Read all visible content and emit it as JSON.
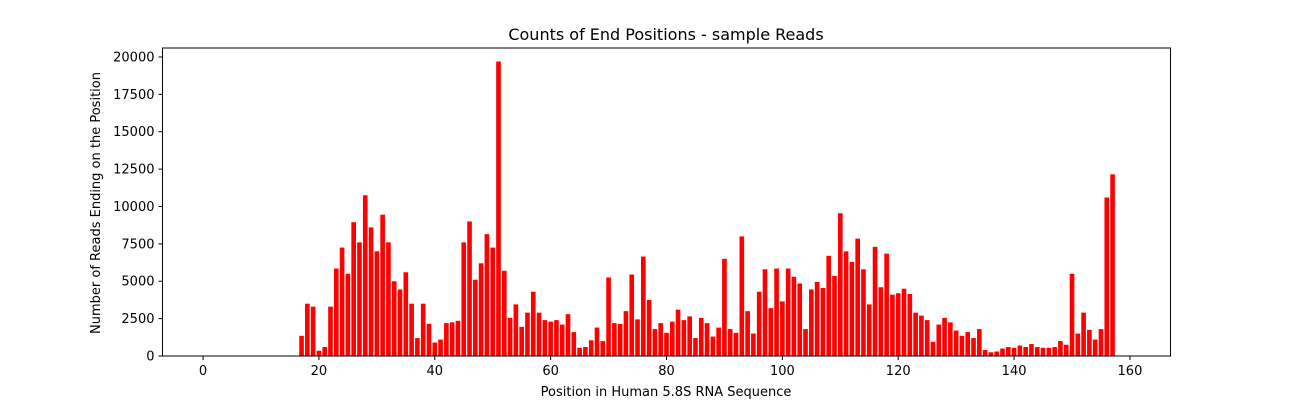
{
  "chart_data": {
    "type": "bar",
    "title": "Counts of End Positions - sample Reads",
    "xlabel": "Position in Human 5.8S RNA Sequence",
    "ylabel": "Number of Reads Ending on the Position",
    "xlim": [
      -7,
      167
    ],
    "ylim": [
      0,
      20600
    ],
    "xticks": [
      "0",
      "20",
      "40",
      "60",
      "80",
      "100",
      "120",
      "140",
      "160"
    ],
    "yticks": [
      "0",
      "2500",
      "5000",
      "7500",
      "10000",
      "12500",
      "15000",
      "17500",
      "20000"
    ],
    "bar_color": "#ff0000",
    "x": [
      17,
      18,
      19,
      20,
      21,
      22,
      23,
      24,
      25,
      26,
      27,
      28,
      29,
      30,
      31,
      32,
      33,
      34,
      35,
      36,
      37,
      38,
      39,
      40,
      41,
      42,
      43,
      44,
      45,
      46,
      47,
      48,
      49,
      50,
      51,
      52,
      53,
      54,
      55,
      56,
      57,
      58,
      59,
      60,
      61,
      62,
      63,
      64,
      65,
      66,
      67,
      68,
      69,
      70,
      71,
      72,
      73,
      74,
      75,
      76,
      77,
      78,
      79,
      80,
      81,
      82,
      83,
      84,
      85,
      86,
      87,
      88,
      89,
      90,
      91,
      92,
      93,
      94,
      95,
      96,
      97,
      98,
      99,
      100,
      101,
      102,
      103,
      104,
      105,
      106,
      107,
      108,
      109,
      110,
      111,
      112,
      113,
      114,
      115,
      116,
      117,
      118,
      119,
      120,
      121,
      122,
      123,
      124,
      125,
      126,
      127,
      128,
      129,
      130,
      131,
      132,
      133,
      134,
      135,
      136,
      137,
      138,
      139,
      140,
      141,
      142,
      143,
      144,
      145,
      146,
      147,
      148,
      149,
      150,
      151,
      152,
      153,
      154,
      155,
      156,
      157
    ],
    "values": [
      1350,
      3500,
      3300,
      350,
      600,
      3300,
      5850,
      7250,
      5500,
      8950,
      7600,
      10750,
      8600,
      7000,
      9450,
      7600,
      5000,
      4450,
      5600,
      3500,
      1200,
      3500,
      2150,
      900,
      1100,
      2200,
      2250,
      2350,
      7600,
      9000,
      5100,
      6200,
      8150,
      7250,
      19700,
      5700,
      2550,
      3450,
      1950,
      2900,
      4300,
      2900,
      2400,
      2300,
      2400,
      2100,
      2800,
      1600,
      550,
      600,
      1050,
      1900,
      1000,
      5250,
      2200,
      2150,
      3000,
      5450,
      2450,
      6650,
      3750,
      1800,
      2200,
      1550,
      2300,
      3100,
      2400,
      2650,
      1200,
      2550,
      2200,
      1300,
      1900,
      6500,
      1800,
      1550,
      8000,
      3000,
      1500,
      4300,
      5800,
      3200,
      5850,
      3650,
      5850,
      5300,
      4850,
      1800,
      4450,
      4950,
      4550,
      6700,
      5350,
      9550,
      7000,
      6300,
      7850,
      5800,
      3450,
      7300,
      4600,
      6850,
      4100,
      4200,
      4500,
      4150,
      2900,
      2700,
      2400,
      950,
      2100,
      2550,
      2250,
      1700,
      1350,
      1600,
      1200,
      1800,
      400,
      250,
      300,
      500,
      600,
      550,
      700,
      600,
      800,
      600,
      550,
      550,
      600,
      1000,
      750,
      5500,
      1500,
      2900,
      1750,
      1100,
      1800,
      10600,
      12150
    ]
  }
}
